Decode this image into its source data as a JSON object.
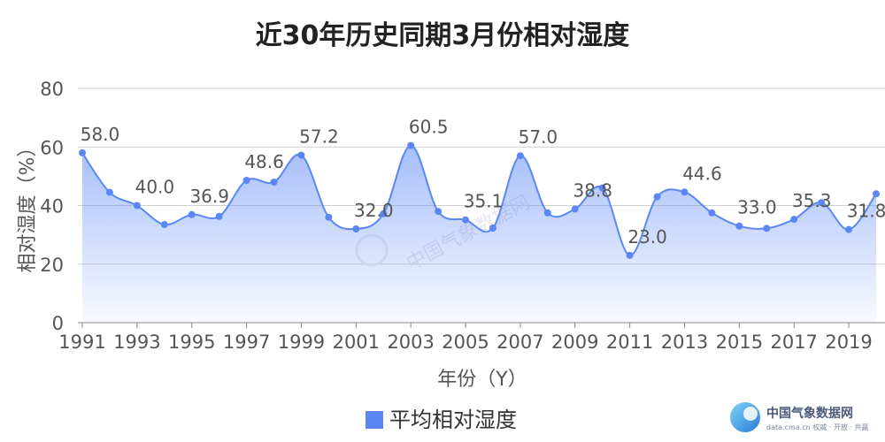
{
  "chart_data": {
    "type": "area",
    "title": "近30年历史同期3月份相对湿度",
    "xlabel": "年份（Y）",
    "ylabel": "相对湿度（%）",
    "ylim": [
      0,
      80
    ],
    "yticks": [
      "0",
      "20",
      "40",
      "60",
      "80"
    ],
    "xlim": [
      1991,
      2020
    ],
    "xticks": [
      "1991",
      "1993",
      "1995",
      "1997",
      "1999",
      "2001",
      "2003",
      "2005",
      "2007",
      "2009",
      "2011",
      "2013",
      "2015",
      "2017",
      "2019"
    ],
    "grid": true,
    "legend_position": "bottom",
    "series": [
      {
        "name": "平均相对湿度",
        "color": "#5b87f5",
        "x": [
          1991,
          1992,
          1993,
          1994,
          1995,
          1996,
          1997,
          1998,
          1999,
          2000,
          2001,
          2002,
          2003,
          2004,
          2005,
          2006,
          2007,
          2008,
          2009,
          2010,
          2011,
          2012,
          2013,
          2014,
          2015,
          2016,
          2017,
          2018,
          2019,
          2020
        ],
        "values": [
          58.0,
          44.5,
          40.0,
          33.5,
          36.9,
          36.3,
          48.6,
          48.0,
          57.2,
          36.0,
          32.0,
          37.2,
          60.5,
          38.0,
          35.1,
          32.3,
          57.0,
          37.5,
          38.8,
          46.0,
          23.0,
          43.0,
          44.6,
          37.5,
          33.0,
          32.2,
          35.3,
          41.0,
          31.8,
          44.0
        ]
      }
    ],
    "data_labels": [
      {
        "x": 1991,
        "text": "58.0"
      },
      {
        "x": 1993,
        "text": "40.0"
      },
      {
        "x": 1995,
        "text": "36.9"
      },
      {
        "x": 1997,
        "text": "48.6"
      },
      {
        "x": 1999,
        "text": "57.2"
      },
      {
        "x": 2001,
        "text": "32.0"
      },
      {
        "x": 2003,
        "text": "60.5"
      },
      {
        "x": 2005,
        "text": "35.1"
      },
      {
        "x": 2007,
        "text": "57.0"
      },
      {
        "x": 2009,
        "text": "38.8"
      },
      {
        "x": 2011,
        "text": "23.0"
      },
      {
        "x": 2013,
        "text": "44.6"
      },
      {
        "x": 2015,
        "text": "33.0"
      },
      {
        "x": 2017,
        "text": "35.3"
      },
      {
        "x": 2019,
        "text": "31.8"
      }
    ]
  },
  "watermark": {
    "center_text": "中国气象数据网"
  },
  "branding": {
    "logo_icon": "cma-data-logo-icon",
    "name": "中国气象数据网",
    "subtitle": "data.cma.cn 权威 · 开放 · 共赢"
  }
}
